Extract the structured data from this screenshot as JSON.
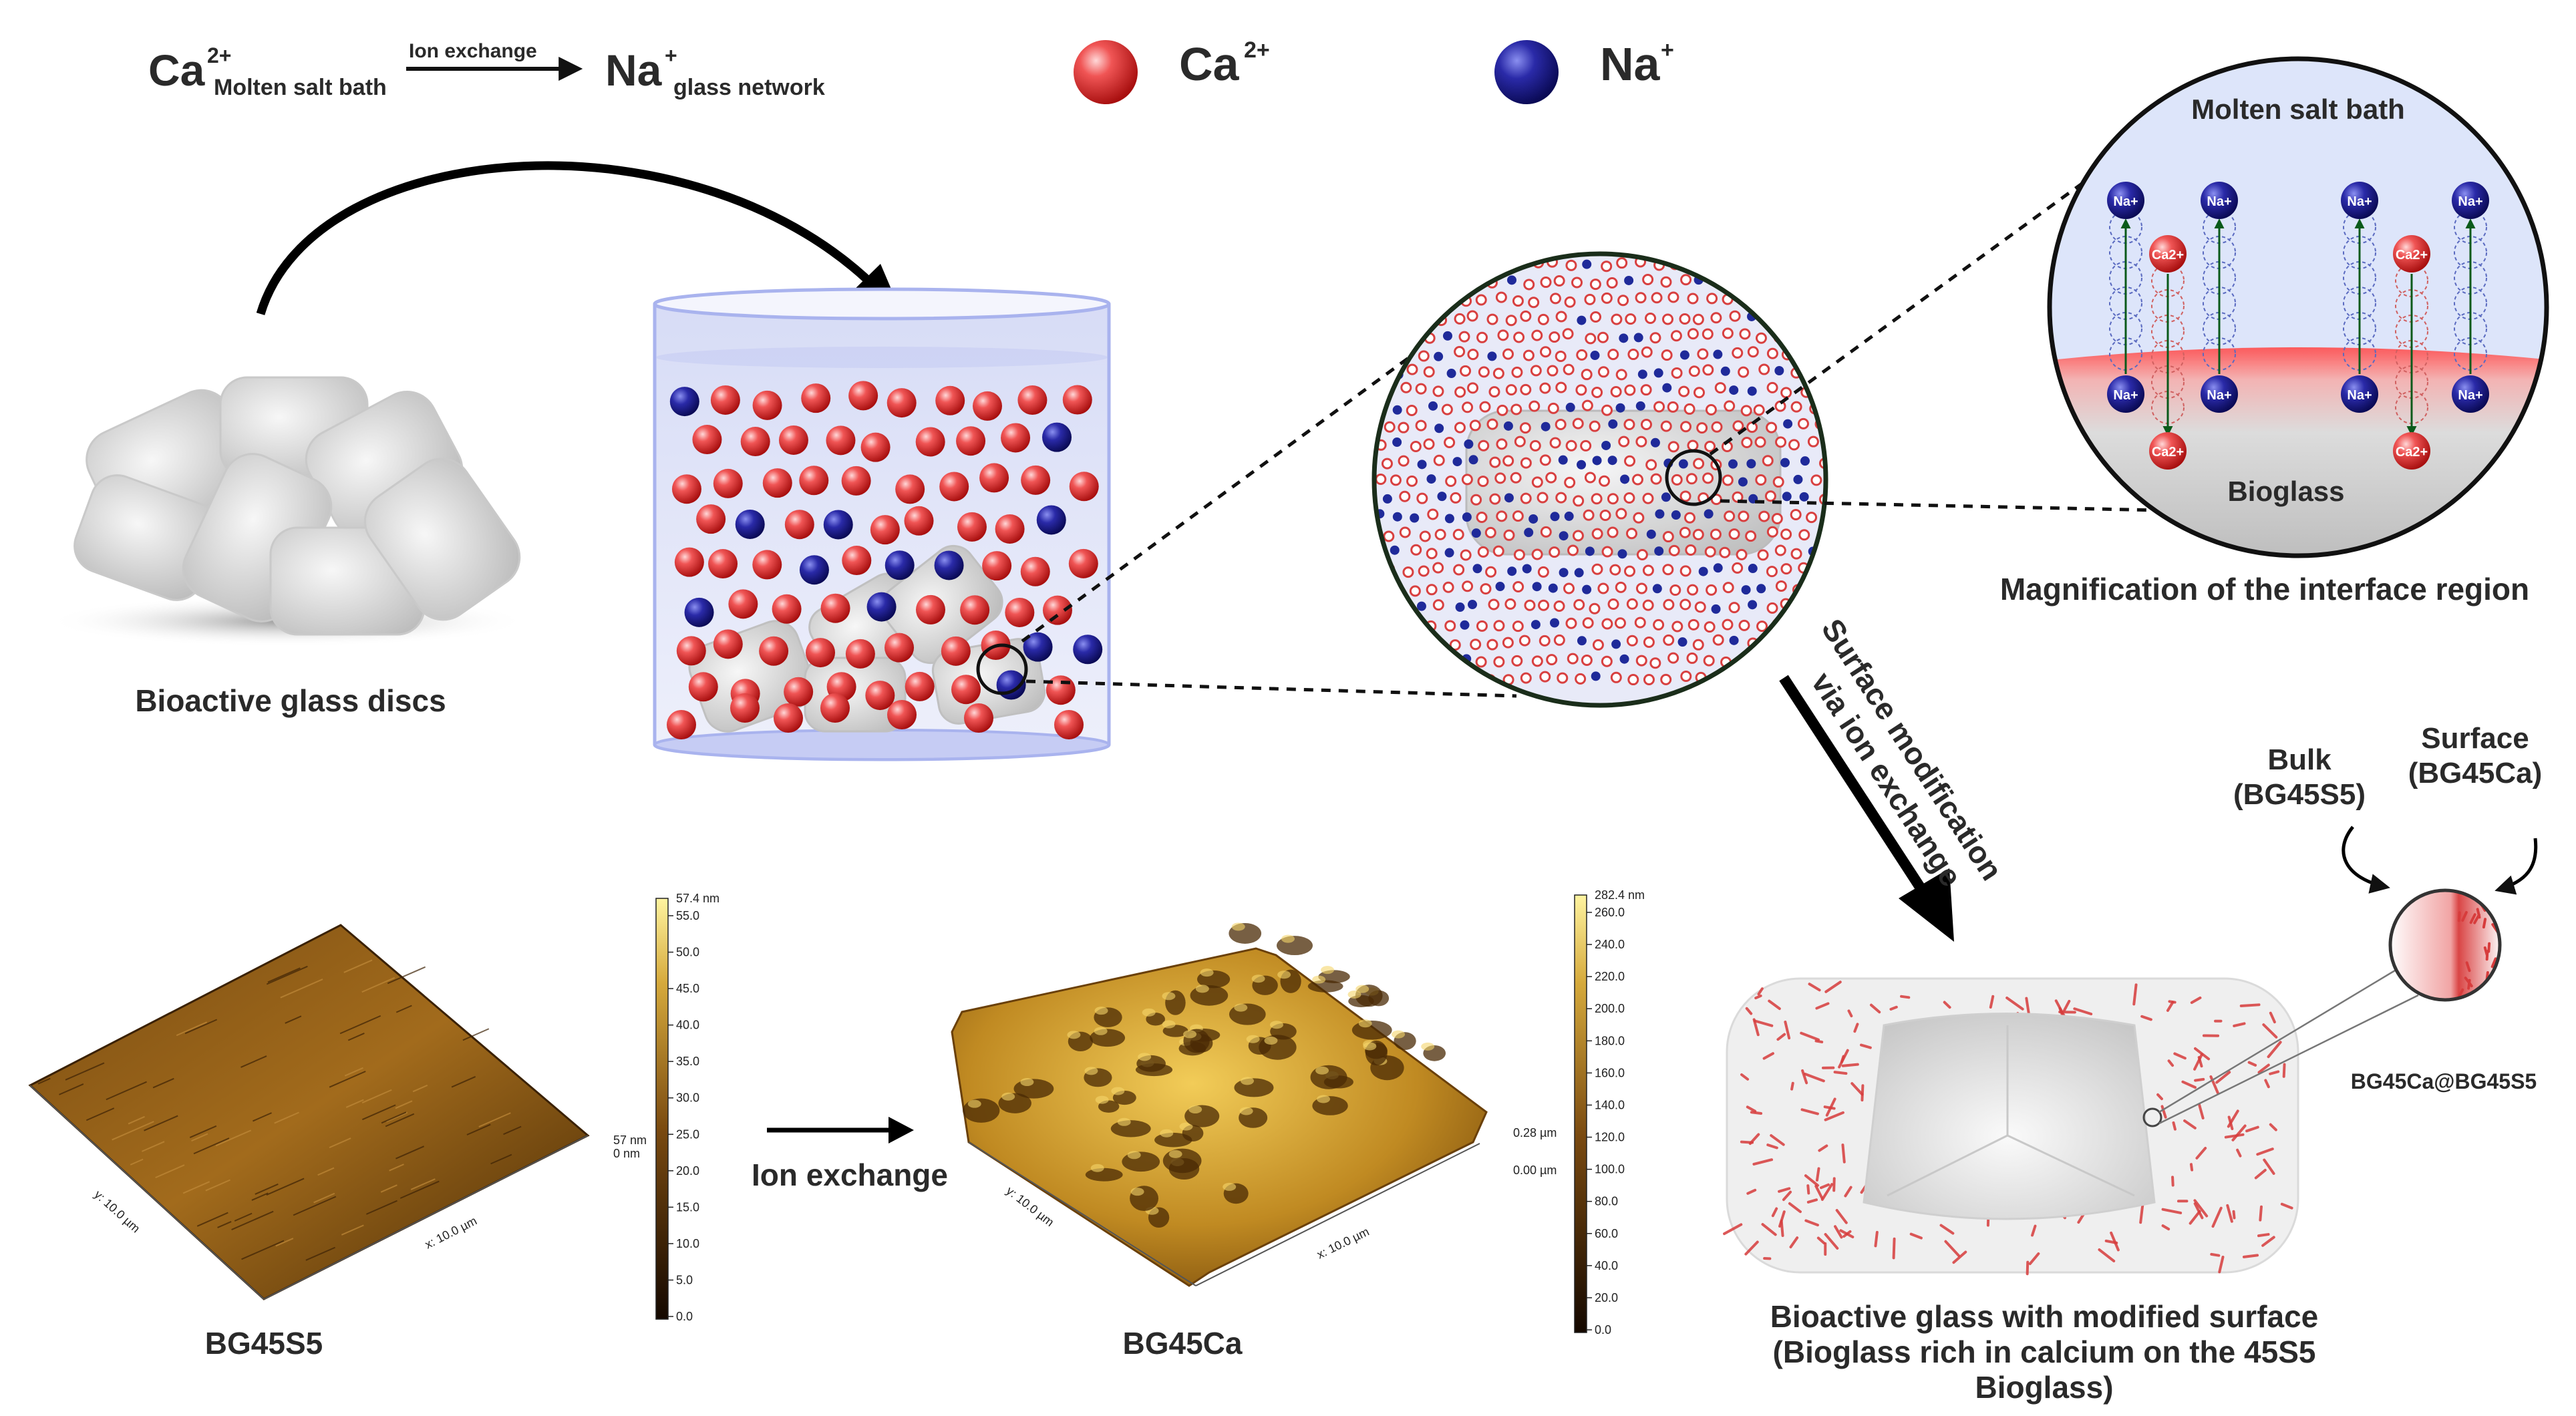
{
  "equation": {
    "left_ion": "Ca",
    "left_charge": "2+",
    "left_sub": "Molten salt bath",
    "arrow_label": "Ion exchange",
    "right_ion": "Na",
    "right_charge": "+",
    "right_sub": "glass network"
  },
  "legend": [
    {
      "ion": "Ca",
      "charge": "2+",
      "color": "#e53935"
    },
    {
      "ion": "Na",
      "charge": "+",
      "color": "#1a1a9e"
    }
  ],
  "discs_label": "Bioactive glass discs",
  "interface": {
    "top_label": "Molten salt bath",
    "bottom_label": "Bioglass",
    "caption": "Magnification of the interface region",
    "na_label": "Na+",
    "ca_label": "Ca2+"
  },
  "arrow_text": [
    "Surface modification",
    "via ion exchange"
  ],
  "afm": {
    "left": {
      "name": "BG45S5",
      "colorbar_max": "57.4 nm",
      "colorbar_ticks": [
        "55.0",
        "50.0",
        "45.0",
        "40.0",
        "35.0",
        "30.0",
        "25.0",
        "20.0",
        "15.0",
        "10.0",
        "5.0",
        "0.0"
      ],
      "z_labels": [
        "57 nm",
        "0 nm"
      ],
      "axis_x": "x: 10.0 µm",
      "axis_y": "y: 10.0 µm"
    },
    "right": {
      "name": "BG45Ca",
      "colorbar_max": "282.4 nm",
      "colorbar_ticks": [
        "260.0",
        "240.0",
        "220.0",
        "200.0",
        "180.0",
        "160.0",
        "140.0",
        "120.0",
        "100.0",
        "80.0",
        "60.0",
        "40.0",
        "20.0",
        "0.0"
      ],
      "z_labels": [
        "0.28 µm",
        "0.00 µm"
      ],
      "axis_x": "x: 10.0 µm",
      "axis_y": "y: 10.0 µm"
    },
    "transition": "Ion exchange"
  },
  "modified": {
    "bulk": [
      "Bulk",
      "(BG45S5)"
    ],
    "surface": [
      "Surface",
      "(BG45Ca)"
    ],
    "composite": "BG45Ca@BG45S5",
    "caption": [
      "Bioactive glass with  modified surface",
      "(Bioglass rich in calcium on the 45S5",
      "Bioglass)"
    ]
  },
  "colors": {
    "ca": "#e53935",
    "na": "#1a1a9e",
    "liquid": "#dfe3f7",
    "afm_dark": "#5a3608",
    "afm_light": "#e6b84a"
  }
}
